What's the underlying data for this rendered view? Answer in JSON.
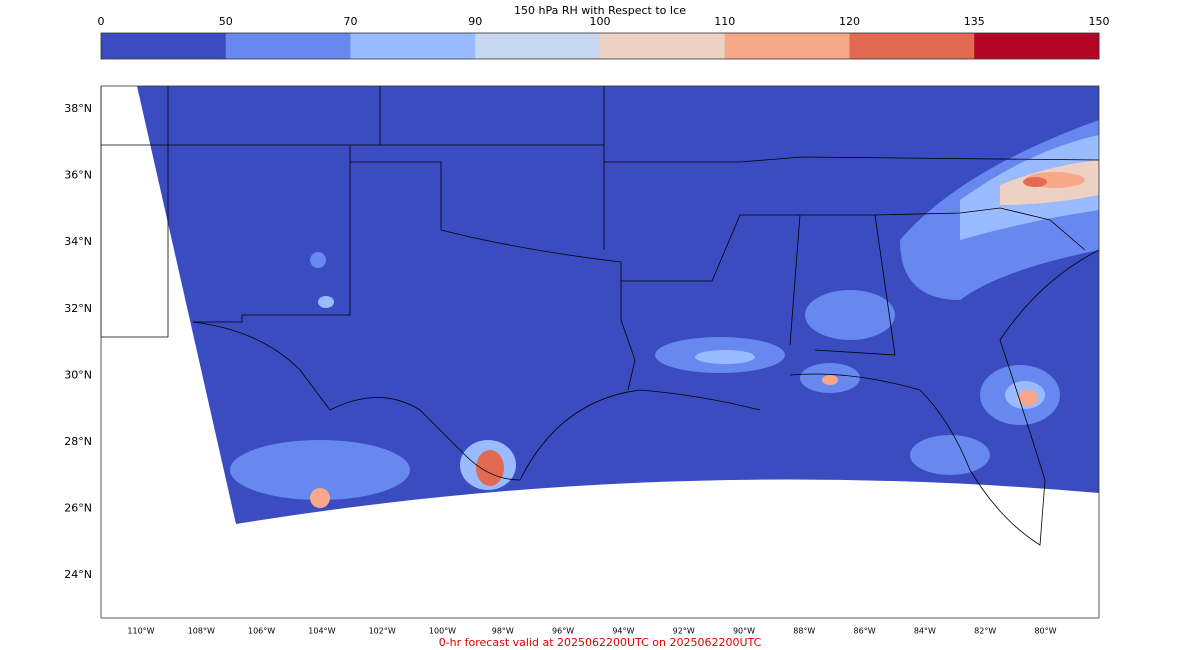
{
  "colorbar": {
    "title": "150 hPa RH with Respect to Ice",
    "ticks": [
      0,
      50,
      70,
      90,
      100,
      110,
      120,
      135,
      150
    ],
    "colors": [
      "#3b4cc0",
      "#6788ee",
      "#9abbff",
      "#c9d7f0",
      "#edd1c2",
      "#f7a889",
      "#e26952",
      "#b40426"
    ]
  },
  "map": {
    "lat_labels": [
      "38°N",
      "36°N",
      "34°N",
      "32°N",
      "30°N",
      "28°N",
      "26°N",
      "24°N"
    ],
    "lon_labels": [
      "110°W",
      "108°W",
      "106°W",
      "104°W",
      "102°W",
      "100°W",
      "98°W",
      "96°W",
      "94°W",
      "92°W",
      "90°W",
      "88°W",
      "86°W",
      "84°W",
      "82°W",
      "80°W"
    ]
  },
  "footer": "0-hr forecast valid at 2025062200UTC on 2025062200UTC"
}
